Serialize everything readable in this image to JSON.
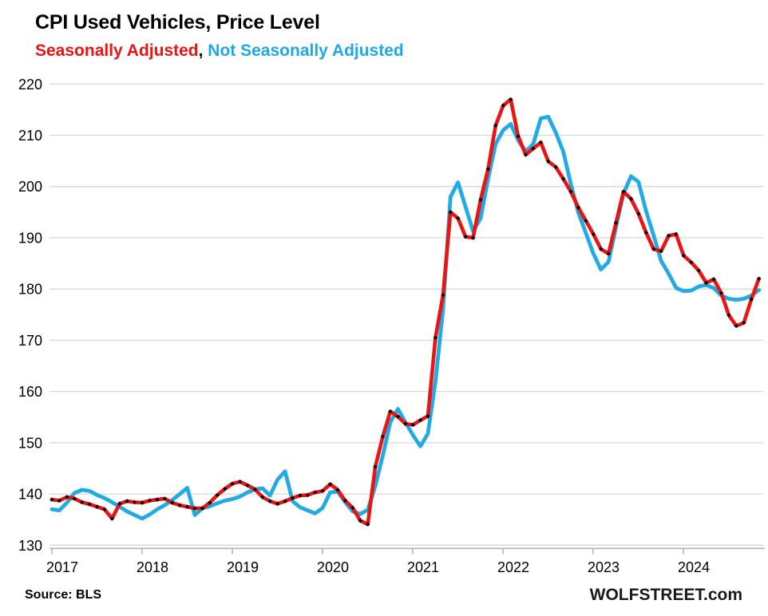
{
  "header": {
    "title": "CPI Used Vehicles, Price Level",
    "subtitle_sa": "Seasonally Adjusted",
    "subtitle_separator": ", ",
    "subtitle_nsa": "Not Seasonally Adjusted"
  },
  "footer": {
    "source": "Source: BLS",
    "watermark": "WOLFSTREET.com"
  },
  "colors": {
    "sa_line": "#ec1313",
    "sa_marker": "#000000",
    "nsa_line": "#22aae4",
    "grid": "#d8d8d8",
    "axis": "#b3b3b3",
    "text": "#000000"
  },
  "chart_data": {
    "type": "line",
    "title": "CPI Used Vehicles, Price Level",
    "xlabel": "",
    "ylabel": "",
    "x_start": "2017-01",
    "x_end": "2024-11",
    "frequency": "monthly",
    "x_tick_labels": [
      "2017",
      "2018",
      "2019",
      "2020",
      "2021",
      "2022",
      "2023",
      "2024"
    ],
    "y_ticks": [
      130,
      140,
      150,
      160,
      170,
      180,
      190,
      200,
      210,
      220
    ],
    "ylim": [
      130,
      220
    ],
    "grid": "horizontal",
    "legend_position": "subtitle",
    "series": [
      {
        "name": "Not Seasonally Adjusted",
        "style": "solid-thick",
        "marker": "none",
        "values": [
          137.0,
          136.8,
          138.3,
          140.2,
          140.8,
          140.6,
          139.8,
          139.2,
          138.4,
          137.5,
          136.6,
          135.9,
          135.2,
          136.0,
          137.0,
          137.8,
          138.8,
          140.0,
          141.2,
          135.9,
          137.2,
          137.6,
          138.2,
          138.7,
          139.0,
          139.5,
          140.3,
          140.9,
          141.1,
          139.7,
          142.8,
          144.4,
          138.6,
          137.4,
          136.8,
          136.2,
          137.3,
          140.3,
          140.5,
          138.4,
          136.6,
          136.1,
          136.9,
          141.6,
          147.5,
          154.0,
          156.6,
          154.0,
          151.5,
          149.3,
          151.8,
          162.0,
          176.0,
          198.0,
          200.8,
          196.0,
          191.3,
          193.8,
          201.5,
          208.3,
          211.0,
          212.2,
          209.0,
          206.8,
          208.3,
          213.3,
          213.6,
          210.5,
          206.8,
          200.5,
          194.9,
          190.9,
          186.9,
          183.8,
          185.3,
          192.1,
          198.6,
          202.0,
          200.9,
          195.2,
          190.5,
          185.5,
          183.0,
          180.2,
          179.6,
          179.7,
          180.5,
          180.8,
          180.2,
          178.7,
          178.1,
          177.9,
          178.1,
          178.7,
          179.8
        ]
      },
      {
        "name": "Seasonally Adjusted",
        "style": "solid-thick",
        "marker": "black-diamond",
        "values": [
          138.9,
          138.7,
          139.4,
          139.1,
          138.4,
          138.0,
          137.5,
          137.0,
          135.2,
          138.1,
          138.6,
          138.4,
          138.3,
          138.7,
          138.9,
          139.1,
          138.3,
          137.8,
          137.5,
          137.2,
          137.2,
          138.3,
          139.8,
          141.0,
          142.0,
          142.4,
          141.7,
          140.9,
          139.4,
          138.6,
          138.1,
          138.6,
          139.2,
          139.7,
          139.8,
          140.3,
          140.6,
          141.9,
          140.8,
          138.7,
          137.3,
          134.8,
          134.1,
          145.3,
          151.2,
          156.1,
          155.1,
          153.7,
          153.5,
          154.4,
          155.2,
          170.5,
          178.8,
          195.0,
          193.8,
          190.2,
          190.0,
          197.4,
          203.4,
          211.9,
          215.8,
          217.0,
          209.8,
          206.2,
          207.4,
          208.6,
          204.9,
          203.8,
          201.5,
          199.0,
          195.9,
          193.3,
          190.7,
          187.8,
          186.9,
          192.9,
          199.0,
          197.6,
          194.7,
          191.0,
          187.8,
          187.4,
          190.4,
          190.7,
          186.5,
          185.2,
          183.6,
          181.2,
          181.9,
          179.2,
          174.9,
          172.8,
          173.4,
          178.0,
          182.0
        ]
      }
    ]
  }
}
